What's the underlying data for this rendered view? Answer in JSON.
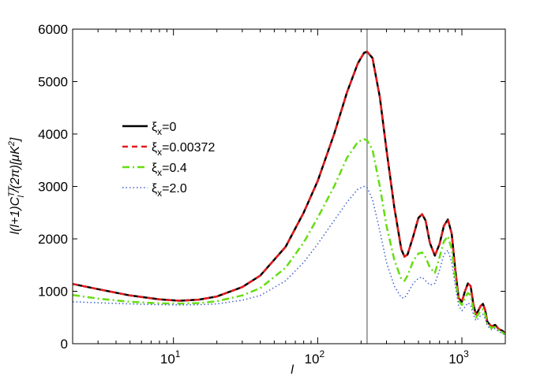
{
  "chart_data": {
    "type": "line",
    "title": "",
    "xlabel": "l",
    "ylabel_parts": {
      "prefix": "l(l+1)C",
      "superscript": "TT",
      "subscript": "l",
      "suffix": "/(2π)[μK",
      "suffix_superscript": "2",
      "close": "]"
    },
    "x_scale": "log",
    "xlim": [
      2,
      2000
    ],
    "ylim": [
      0,
      6000
    ],
    "x_ticks": [
      {
        "value": 10,
        "base": "10",
        "exp": "1"
      },
      {
        "value": 100,
        "base": "10",
        "exp": "2"
      },
      {
        "value": 1000,
        "base": "10",
        "exp": "3"
      }
    ],
    "y_ticks": [
      {
        "value": 0,
        "label": "0"
      },
      {
        "value": 1000,
        "label": "1000"
      },
      {
        "value": 2000,
        "label": "2000"
      },
      {
        "value": 3000,
        "label": "3000"
      },
      {
        "value": 4000,
        "label": "4000"
      },
      {
        "value": 5000,
        "label": "5000"
      },
      {
        "value": 6000,
        "label": "6000"
      }
    ],
    "vertical_line_x": 220,
    "legend_position": "left",
    "series": [
      {
        "name_symbol": "ξ",
        "name_sub": "x",
        "name_value": "=0",
        "color": "#000000",
        "style": "solid",
        "x": [
          2,
          3,
          5,
          8,
          11,
          15,
          20,
          30,
          40,
          60,
          80,
          100,
          130,
          160,
          190,
          210,
          220,
          240,
          270,
          300,
          340,
          380,
          400,
          420,
          460,
          500,
          530,
          560,
          600,
          650,
          700,
          750,
          800,
          850,
          900,
          950,
          1000,
          1050,
          1100,
          1150,
          1200,
          1250,
          1300,
          1350,
          1400,
          1450,
          1500,
          1600,
          1700,
          1800,
          1900,
          2000
        ],
        "y": [
          1140,
          1040,
          920,
          845,
          820,
          840,
          900,
          1080,
          1300,
          1850,
          2500,
          3100,
          4000,
          4800,
          5350,
          5550,
          5570,
          5450,
          4700,
          3700,
          2600,
          1800,
          1660,
          1700,
          2050,
          2400,
          2470,
          2350,
          1920,
          1680,
          1900,
          2250,
          2370,
          2100,
          1400,
          870,
          800,
          1000,
          1150,
          1100,
          750,
          560,
          630,
          720,
          760,
          640,
          420,
          330,
          360,
          280,
          250,
          200
        ]
      },
      {
        "name_symbol": "ξ",
        "name_sub": "x",
        "name_value": "=0.00372",
        "color": "#e41a1c",
        "style": "dashed",
        "x": [
          2,
          3,
          5,
          8,
          11,
          15,
          20,
          30,
          40,
          60,
          80,
          100,
          130,
          160,
          190,
          210,
          220,
          240,
          270,
          300,
          340,
          380,
          400,
          420,
          460,
          500,
          530,
          560,
          600,
          650,
          700,
          750,
          800,
          850,
          900,
          950,
          1000,
          1050,
          1100,
          1150,
          1200,
          1250,
          1300,
          1350,
          1400,
          1450,
          1500,
          1600,
          1700,
          1800,
          1900,
          2000
        ],
        "y": [
          1140,
          1040,
          920,
          845,
          820,
          840,
          900,
          1080,
          1300,
          1850,
          2500,
          3100,
          4000,
          4800,
          5350,
          5550,
          5570,
          5450,
          4700,
          3700,
          2600,
          1800,
          1660,
          1700,
          2050,
          2400,
          2470,
          2350,
          1920,
          1680,
          1900,
          2250,
          2370,
          2100,
          1400,
          870,
          800,
          1000,
          1150,
          1100,
          750,
          560,
          630,
          720,
          760,
          640,
          420,
          330,
          360,
          280,
          250,
          200
        ]
      },
      {
        "name_symbol": "ξ",
        "name_sub": "x",
        "name_value": "=0.4",
        "color": "#66dd11",
        "style": "dashdot",
        "x": [
          2,
          3,
          5,
          8,
          11,
          15,
          20,
          30,
          40,
          60,
          80,
          100,
          130,
          160,
          190,
          210,
          220,
          240,
          270,
          300,
          340,
          380,
          400,
          420,
          460,
          500,
          530,
          560,
          600,
          650,
          700,
          750,
          800,
          850,
          900,
          950,
          1000,
          1050,
          1100,
          1150,
          1200,
          1250,
          1300,
          1350,
          1400,
          1450,
          1500,
          1600,
          1700,
          1800,
          1900,
          2000
        ],
        "y": [
          930,
          860,
          800,
          770,
          765,
          775,
          810,
          920,
          1060,
          1450,
          1930,
          2400,
          3000,
          3550,
          3850,
          3900,
          3880,
          3700,
          3000,
          2250,
          1600,
          1230,
          1200,
          1300,
          1580,
          1720,
          1740,
          1650,
          1450,
          1350,
          1650,
          1950,
          2050,
          1800,
          1250,
          820,
          740,
          870,
          970,
          920,
          660,
          500,
          560,
          630,
          660,
          560,
          380,
          300,
          320,
          250,
          220,
          180
        ]
      },
      {
        "name_symbol": "ξ",
        "name_sub": "x",
        "name_value": "=2.0",
        "color": "#4060d0",
        "style": "dotted",
        "x": [
          2,
          3,
          5,
          8,
          11,
          15,
          20,
          30,
          40,
          60,
          80,
          100,
          130,
          160,
          190,
          210,
          220,
          240,
          270,
          300,
          340,
          380,
          400,
          420,
          460,
          500,
          530,
          560,
          600,
          650,
          700,
          750,
          800,
          850,
          900,
          950,
          1000,
          1050,
          1100,
          1150,
          1200,
          1250,
          1300,
          1350,
          1400,
          1450,
          1500,
          1600,
          1700,
          1800,
          1900,
          2000
        ],
        "y": [
          800,
          780,
          760,
          745,
          740,
          745,
          760,
          830,
          920,
          1200,
          1550,
          1900,
          2350,
          2700,
          2950,
          3000,
          2980,
          2750,
          2150,
          1550,
          1100,
          880,
          870,
          960,
          1150,
          1250,
          1270,
          1200,
          1120,
          1150,
          1400,
          1700,
          1780,
          1550,
          1100,
          720,
          630,
          700,
          780,
          740,
          560,
          440,
          480,
          540,
          560,
          480,
          340,
          270,
          290,
          230,
          200,
          170
        ]
      }
    ]
  }
}
